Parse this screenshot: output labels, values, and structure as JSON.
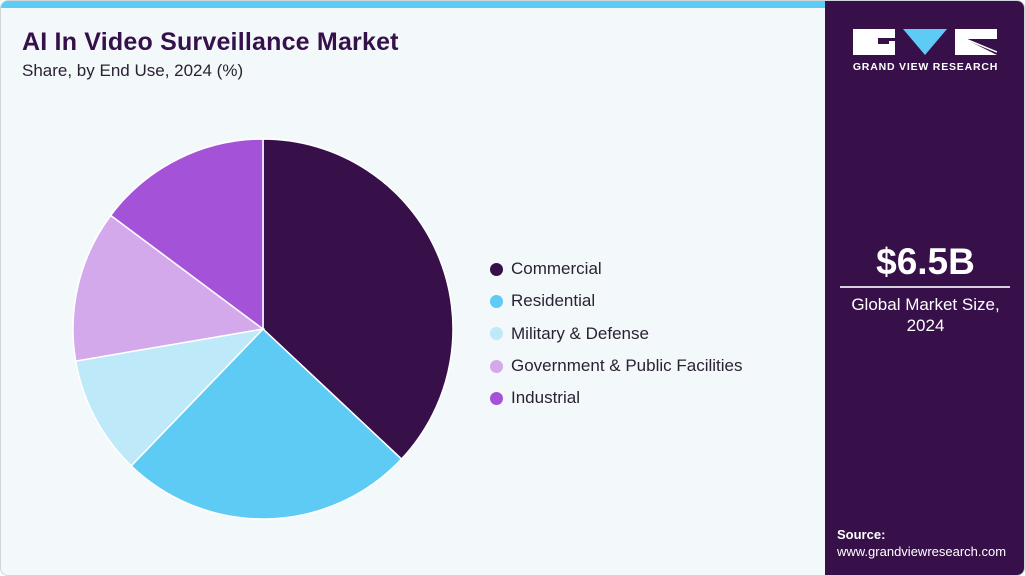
{
  "header": {
    "title": "AI In Video Surveillance Market",
    "subtitle": "Share, by End Use, 2024 (%)"
  },
  "colors": {
    "accent_bar": "#5ecbf5",
    "sidebar_bg": "#37104a",
    "background": "#f3f8fb"
  },
  "legend": {
    "items": [
      {
        "label": "Commercial",
        "color": "#37104a"
      },
      {
        "label": "Residential",
        "color": "#5ecbf5"
      },
      {
        "label": "Military & Defense",
        "color": "#bde9f9"
      },
      {
        "label": "Government & Public Facilities",
        "color": "#d4a9ec"
      },
      {
        "label": "Industrial",
        "color": "#a453d8"
      }
    ]
  },
  "sidebar": {
    "logo_text": "GRAND VIEW RESEARCH",
    "market_value": "$6.5B",
    "market_label_line1": "Global Market Size,",
    "market_label_line2": "2024",
    "source_label": "Source:",
    "source_url": "www.grandviewresearch.com"
  },
  "chart_data": {
    "type": "pie",
    "title": "AI In Video Surveillance Market",
    "subtitle": "Share, by End Use, 2024 (%)",
    "categories": [
      "Commercial",
      "Residential",
      "Military & Defense",
      "Government & Public Facilities",
      "Industrial"
    ],
    "values": [
      37.0,
      25.2,
      10.1,
      12.9,
      14.8
    ],
    "colors": [
      "#37104a",
      "#5ecbf5",
      "#bde9f9",
      "#d4a9ec",
      "#a453d8"
    ],
    "start_angle": "12 o'clock, clockwise",
    "legend_position": "right"
  }
}
